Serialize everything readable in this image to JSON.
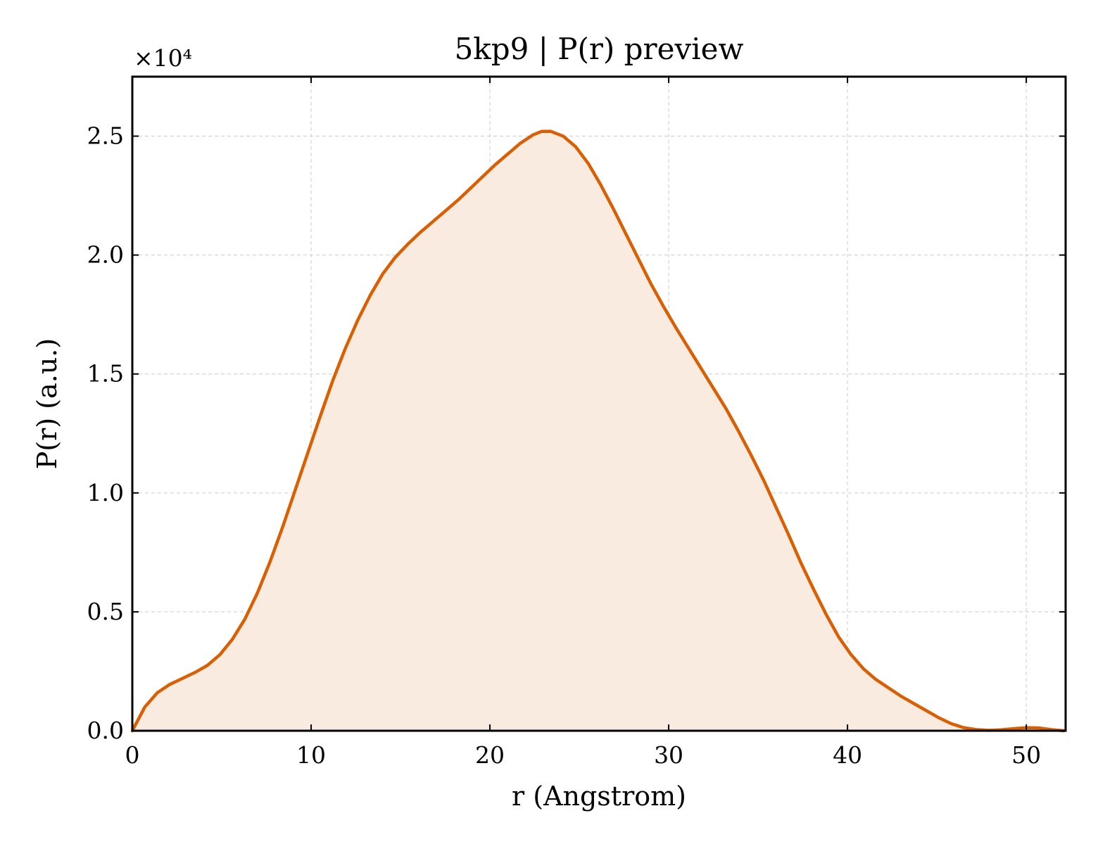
{
  "chart_data": {
    "type": "area",
    "title": "5kp9 | P(r) preview",
    "xlabel": "r (Angstrom)",
    "ylabel": "P(r) (a.u.)",
    "y_multiplier_label": "×10⁴",
    "y_scale": 10000,
    "xlim": [
      0,
      52.2
    ],
    "ylim": [
      0,
      27500
    ],
    "x_ticks": [
      0,
      10,
      20,
      30,
      40,
      50
    ],
    "x_tick_labels": [
      "0",
      "10",
      "20",
      "30",
      "40",
      "50"
    ],
    "y_ticks": [
      0,
      5000,
      10000,
      15000,
      20000,
      25000
    ],
    "y_tick_labels": [
      "0.0",
      "0.5",
      "1.0",
      "1.5",
      "2.0",
      "2.5"
    ],
    "grid": true,
    "legend": "none",
    "colors": {
      "line": "#d95f02",
      "fill": "#f9ebe0"
    },
    "series": [
      {
        "x": [
          0,
          0.7,
          1.4,
          2.1,
          2.8,
          3.5,
          4.2,
          4.9,
          5.6,
          6.3,
          7.0,
          7.7,
          8.4,
          9.1,
          9.8,
          10.5,
          11.2,
          11.9,
          12.6,
          13.3,
          14.0,
          14.7,
          15.4,
          16.1,
          16.8,
          17.5,
          18.2,
          18.9,
          19.6,
          20.3,
          21.0,
          21.7,
          22.4,
          22.9,
          23.4,
          24.1,
          24.8,
          25.5,
          26.2,
          26.9,
          27.6,
          28.3,
          29.0,
          29.7,
          30.4,
          31.1,
          31.8,
          32.5,
          33.2,
          33.9,
          34.6,
          35.3,
          36.0,
          36.7,
          37.4,
          38.1,
          38.8,
          39.5,
          40.2,
          40.9,
          41.6,
          42.3,
          43.0,
          43.7,
          44.4,
          45.1,
          45.8,
          46.5,
          47.2,
          47.9,
          48.6,
          49.3,
          50.0,
          50.7,
          51.4,
          52.1
        ],
        "y": [
          0,
          1000,
          1600,
          1950,
          2200,
          2450,
          2750,
          3200,
          3850,
          4700,
          5800,
          7100,
          8550,
          10100,
          11650,
          13200,
          14700,
          16050,
          17250,
          18300,
          19200,
          19900,
          20450,
          20950,
          21400,
          21850,
          22300,
          22800,
          23300,
          23800,
          24250,
          24700,
          25050,
          25200,
          25200,
          25000,
          24550,
          23850,
          22950,
          21950,
          20900,
          19850,
          18800,
          17850,
          16950,
          16100,
          15250,
          14400,
          13550,
          12600,
          11600,
          10550,
          9400,
          8250,
          7050,
          5950,
          4900,
          3950,
          3200,
          2600,
          2150,
          1800,
          1450,
          1150,
          850,
          550,
          300,
          130,
          50,
          20,
          40,
          90,
          130,
          120,
          50,
          0
        ]
      }
    ]
  }
}
